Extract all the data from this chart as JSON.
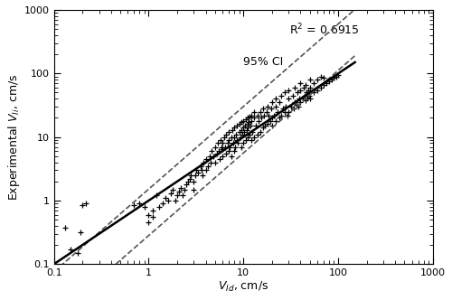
{
  "title": "",
  "xlabel": "V_{Id}, cm/s",
  "ylabel": "Experimental V_{Ii}, cm/s",
  "xlim": [
    0.1,
    1000
  ],
  "ylim": [
    0.1,
    1000
  ],
  "r2_text": "R$^2$ = 0.6915",
  "ci_text": "95% CI",
  "background_color": "#ffffff",
  "marker": "+",
  "marker_color": "black",
  "marker_size": 4,
  "marker_lw": 0.9,
  "line_color": "black",
  "ci_color": "#555555",
  "regression_slope": 1.0,
  "regression_intercept": 1.0,
  "ci_upper_slope": 1.3,
  "ci_upper_intercept_log": 0.18,
  "ci_lower_slope": 1.3,
  "ci_lower_intercept_log": -0.55,
  "data_points": [
    [
      0.13,
      0.38
    ],
    [
      0.15,
      0.17
    ],
    [
      0.18,
      0.15
    ],
    [
      0.19,
      0.32
    ],
    [
      0.2,
      0.85
    ],
    [
      0.22,
      0.9
    ],
    [
      0.7,
      0.85
    ],
    [
      0.8,
      0.9
    ],
    [
      0.9,
      0.8
    ],
    [
      1.0,
      0.45
    ],
    [
      1.0,
      0.6
    ],
    [
      1.1,
      0.55
    ],
    [
      1.1,
      0.7
    ],
    [
      1.2,
      1.2
    ],
    [
      1.3,
      0.8
    ],
    [
      1.4,
      0.9
    ],
    [
      1.5,
      1.1
    ],
    [
      1.6,
      1.0
    ],
    [
      1.7,
      1.3
    ],
    [
      1.8,
      1.5
    ],
    [
      1.9,
      1.0
    ],
    [
      2.0,
      1.2
    ],
    [
      2.1,
      1.4
    ],
    [
      2.2,
      1.6
    ],
    [
      2.3,
      1.2
    ],
    [
      2.4,
      1.5
    ],
    [
      2.5,
      1.8
    ],
    [
      2.6,
      2.0
    ],
    [
      2.7,
      2.2
    ],
    [
      2.8,
      2.5
    ],
    [
      3.0,
      1.5
    ],
    [
      3.0,
      2.0
    ],
    [
      3.1,
      2.5
    ],
    [
      3.2,
      3.0
    ],
    [
      3.3,
      2.8
    ],
    [
      3.5,
      3.5
    ],
    [
      3.6,
      3.0
    ],
    [
      3.7,
      2.5
    ],
    [
      3.8,
      4.0
    ],
    [
      4.0,
      3.0
    ],
    [
      4.0,
      4.5
    ],
    [
      4.2,
      3.5
    ],
    [
      4.4,
      5.0
    ],
    [
      4.5,
      4.0
    ],
    [
      4.6,
      6.0
    ],
    [
      4.8,
      5.0
    ],
    [
      5.0,
      4.0
    ],
    [
      5.0,
      7.0
    ],
    [
      5.2,
      5.5
    ],
    [
      5.4,
      8.0
    ],
    [
      5.5,
      6.0
    ],
    [
      5.6,
      4.5
    ],
    [
      5.7,
      9.0
    ],
    [
      5.8,
      7.0
    ],
    [
      6.0,
      5.0
    ],
    [
      6.0,
      6.5
    ],
    [
      6.0,
      8.0
    ],
    [
      6.2,
      10.0
    ],
    [
      6.4,
      7.0
    ],
    [
      6.5,
      5.5
    ],
    [
      6.6,
      11.0
    ],
    [
      6.8,
      8.0
    ],
    [
      7.0,
      6.0
    ],
    [
      7.0,
      9.0
    ],
    [
      7.0,
      12.0
    ],
    [
      7.2,
      7.0
    ],
    [
      7.4,
      10.0
    ],
    [
      7.5,
      5.0
    ],
    [
      7.6,
      13.0
    ],
    [
      7.8,
      8.0
    ],
    [
      8.0,
      6.0
    ],
    [
      8.0,
      10.0
    ],
    [
      8.0,
      14.0
    ],
    [
      8.2,
      7.0
    ],
    [
      8.4,
      11.0
    ],
    [
      8.5,
      9.0
    ],
    [
      8.6,
      15.0
    ],
    [
      8.8,
      8.0
    ],
    [
      9.0,
      12.0
    ],
    [
      9.0,
      16.0
    ],
    [
      9.2,
      10.0
    ],
    [
      9.4,
      13.0
    ],
    [
      9.5,
      7.0
    ],
    [
      9.6,
      17.0
    ],
    [
      9.8,
      11.0
    ],
    [
      10.0,
      8.0
    ],
    [
      10.0,
      14.0
    ],
    [
      10.0,
      18.0
    ],
    [
      10.2,
      12.0
    ],
    [
      10.4,
      15.0
    ],
    [
      10.5,
      9.0
    ],
    [
      10.6,
      19.0
    ],
    [
      10.8,
      13.0
    ],
    [
      11.0,
      10.0
    ],
    [
      11.0,
      16.0
    ],
    [
      11.0,
      20.0
    ],
    [
      11.2,
      14.0
    ],
    [
      11.4,
      17.0
    ],
    [
      11.5,
      11.0
    ],
    [
      11.6,
      21.0
    ],
    [
      11.8,
      15.0
    ],
    [
      12.0,
      9.0
    ],
    [
      12.0,
      18.0
    ],
    [
      12.0,
      22.0
    ],
    [
      12.5,
      12.0
    ],
    [
      13.0,
      10.0
    ],
    [
      13.0,
      20.0
    ],
    [
      13.0,
      25.0
    ],
    [
      13.5,
      15.0
    ],
    [
      14.0,
      11.0
    ],
    [
      14.0,
      22.0
    ],
    [
      14.5,
      18.0
    ],
    [
      15.0,
      12.0
    ],
    [
      15.0,
      25.0
    ],
    [
      15.5,
      20.0
    ],
    [
      16.0,
      14.0
    ],
    [
      16.0,
      28.0
    ],
    [
      16.5,
      22.0
    ],
    [
      17.0,
      15.0
    ],
    [
      17.5,
      25.0
    ],
    [
      18.0,
      16.0
    ],
    [
      18.0,
      30.0
    ],
    [
      18.5,
      22.0
    ],
    [
      19.0,
      18.0
    ],
    [
      19.5,
      28.0
    ],
    [
      20.0,
      15.0
    ],
    [
      20.0,
      20.0
    ],
    [
      20.0,
      35.0
    ],
    [
      21.0,
      22.0
    ],
    [
      22.0,
      18.0
    ],
    [
      22.0,
      30.0
    ],
    [
      22.0,
      40.0
    ],
    [
      23.0,
      25.0
    ],
    [
      24.0,
      20.0
    ],
    [
      24.0,
      35.0
    ],
    [
      25.0,
      22.0
    ],
    [
      25.0,
      45.0
    ],
    [
      26.0,
      28.0
    ],
    [
      27.0,
      25.0
    ],
    [
      27.0,
      50.0
    ],
    [
      28.0,
      30.0
    ],
    [
      29.0,
      22.0
    ],
    [
      30.0,
      25.0
    ],
    [
      30.0,
      40.0
    ],
    [
      30.0,
      55.0
    ],
    [
      32.0,
      30.0
    ],
    [
      33.0,
      45.0
    ],
    [
      34.0,
      28.0
    ],
    [
      35.0,
      35.0
    ],
    [
      35.0,
      60.0
    ],
    [
      36.0,
      32.0
    ],
    [
      37.0,
      50.0
    ],
    [
      38.0,
      30.0
    ],
    [
      39.0,
      40.0
    ],
    [
      40.0,
      35.0
    ],
    [
      40.0,
      55.0
    ],
    [
      40.0,
      70.0
    ],
    [
      42.0,
      40.0
    ],
    [
      43.0,
      60.0
    ],
    [
      44.0,
      45.0
    ],
    [
      45.0,
      38.0
    ],
    [
      45.0,
      65.0
    ],
    [
      46.0,
      50.0
    ],
    [
      47.0,
      42.0
    ],
    [
      48.0,
      55.0
    ],
    [
      49.0,
      45.0
    ],
    [
      50.0,
      40.0
    ],
    [
      50.0,
      60.0
    ],
    [
      50.0,
      80.0
    ],
    [
      55.0,
      50.0
    ],
    [
      55.0,
      70.0
    ],
    [
      60.0,
      55.0
    ],
    [
      60.0,
      80.0
    ],
    [
      65.0,
      60.0
    ],
    [
      65.0,
      90.0
    ],
    [
      70.0,
      65.0
    ],
    [
      70.0,
      85.0
    ],
    [
      75.0,
      70.0
    ],
    [
      80.0,
      75.0
    ],
    [
      85.0,
      80.0
    ],
    [
      90.0,
      85.0
    ],
    [
      95.0,
      90.0
    ],
    [
      100.0,
      95.0
    ]
  ]
}
